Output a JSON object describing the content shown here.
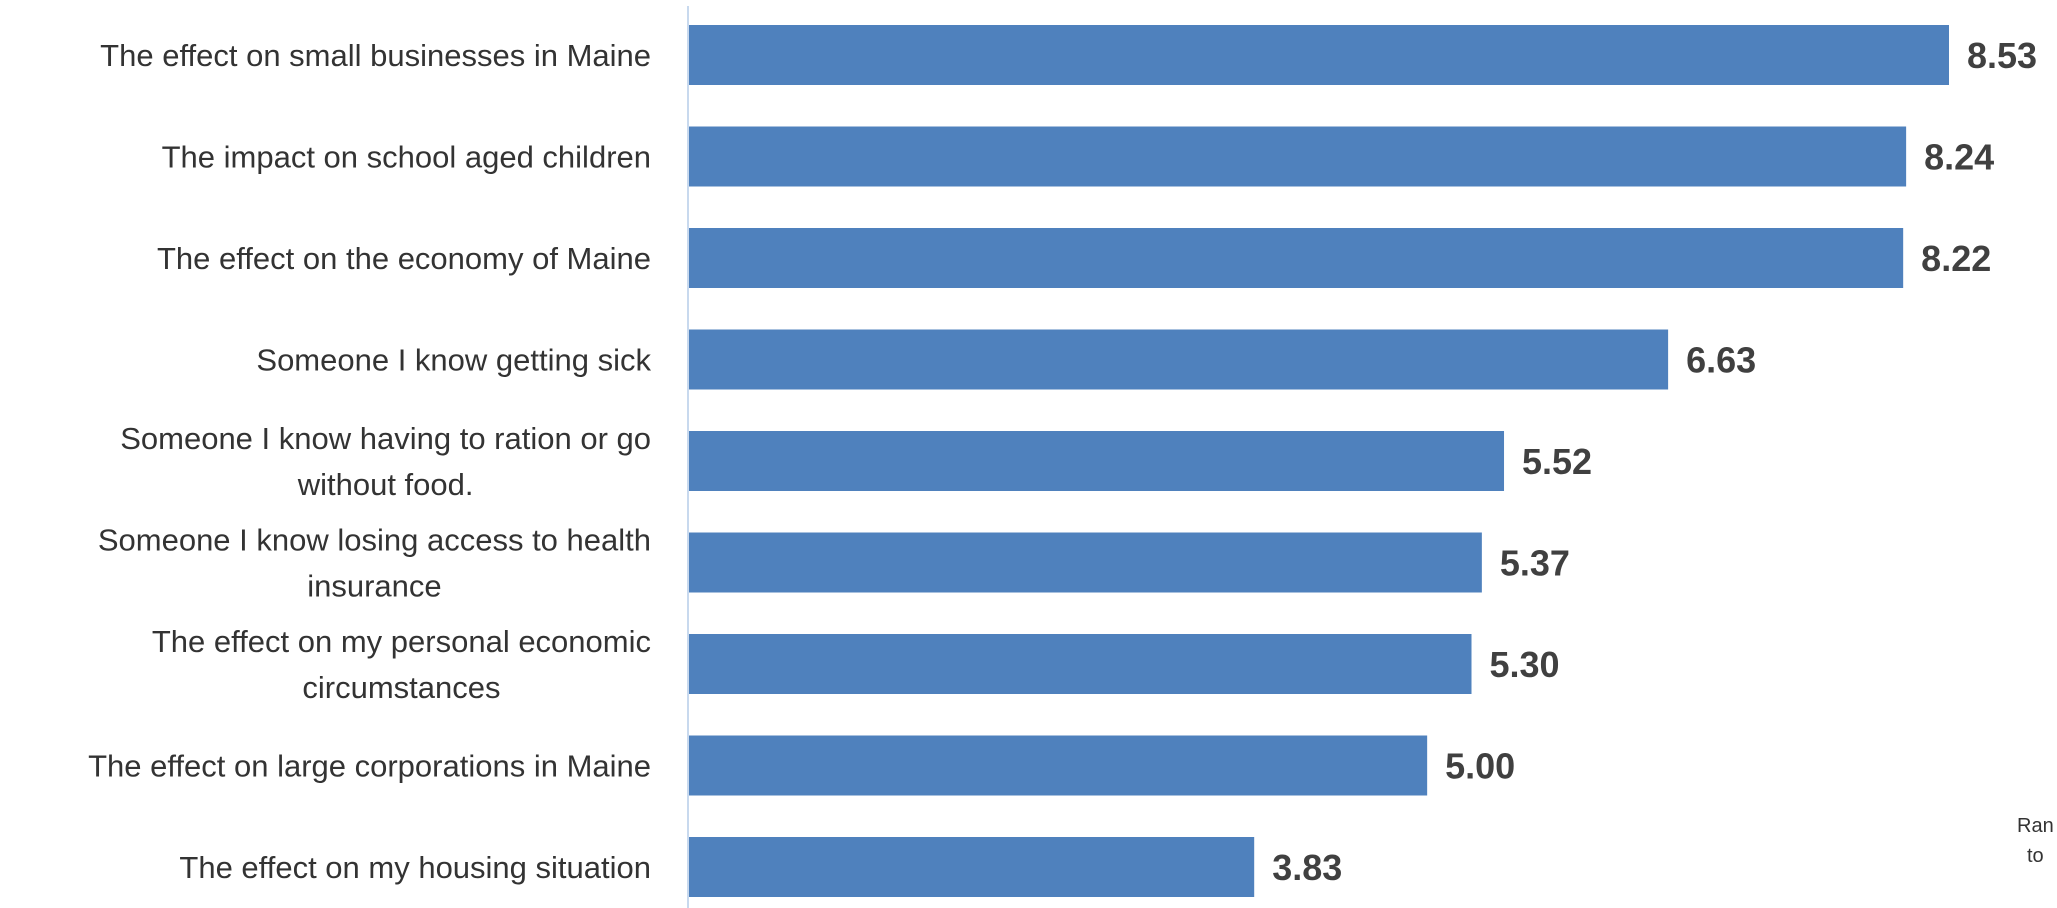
{
  "chart_data": {
    "type": "bar",
    "orientation": "horizontal",
    "categories": [
      [
        "The effect on small businesses in Maine"
      ],
      [
        "The impact on school aged children"
      ],
      [
        "The effect on the economy of Maine"
      ],
      [
        "Someone I know getting sick"
      ],
      [
        "Someone I know having to ration or go",
        "without food."
      ],
      [
        "Someone I know losing access to health",
        "insurance"
      ],
      [
        "The effect on my personal economic",
        "circumstances"
      ],
      [
        "The effect on large corporations in Maine"
      ],
      [
        "The effect on my housing situation"
      ]
    ],
    "values": [
      8.53,
      8.24,
      8.22,
      6.63,
      5.52,
      5.37,
      5.3,
      5.0,
      3.83
    ],
    "value_labels": [
      "8.53",
      "8.24",
      "8.22",
      "6.63",
      "5.52",
      "5.37",
      "5.30",
      "5.00",
      "3.83"
    ],
    "xlim": [
      0,
      10
    ],
    "bar_color": "#4f81bd",
    "axis_color": "#c8d9ee",
    "grid": false,
    "legend": "none",
    "title": "",
    "xlabel": "",
    "ylabel": "",
    "annotation_lines": [
      "Ran",
      "to"
    ]
  }
}
